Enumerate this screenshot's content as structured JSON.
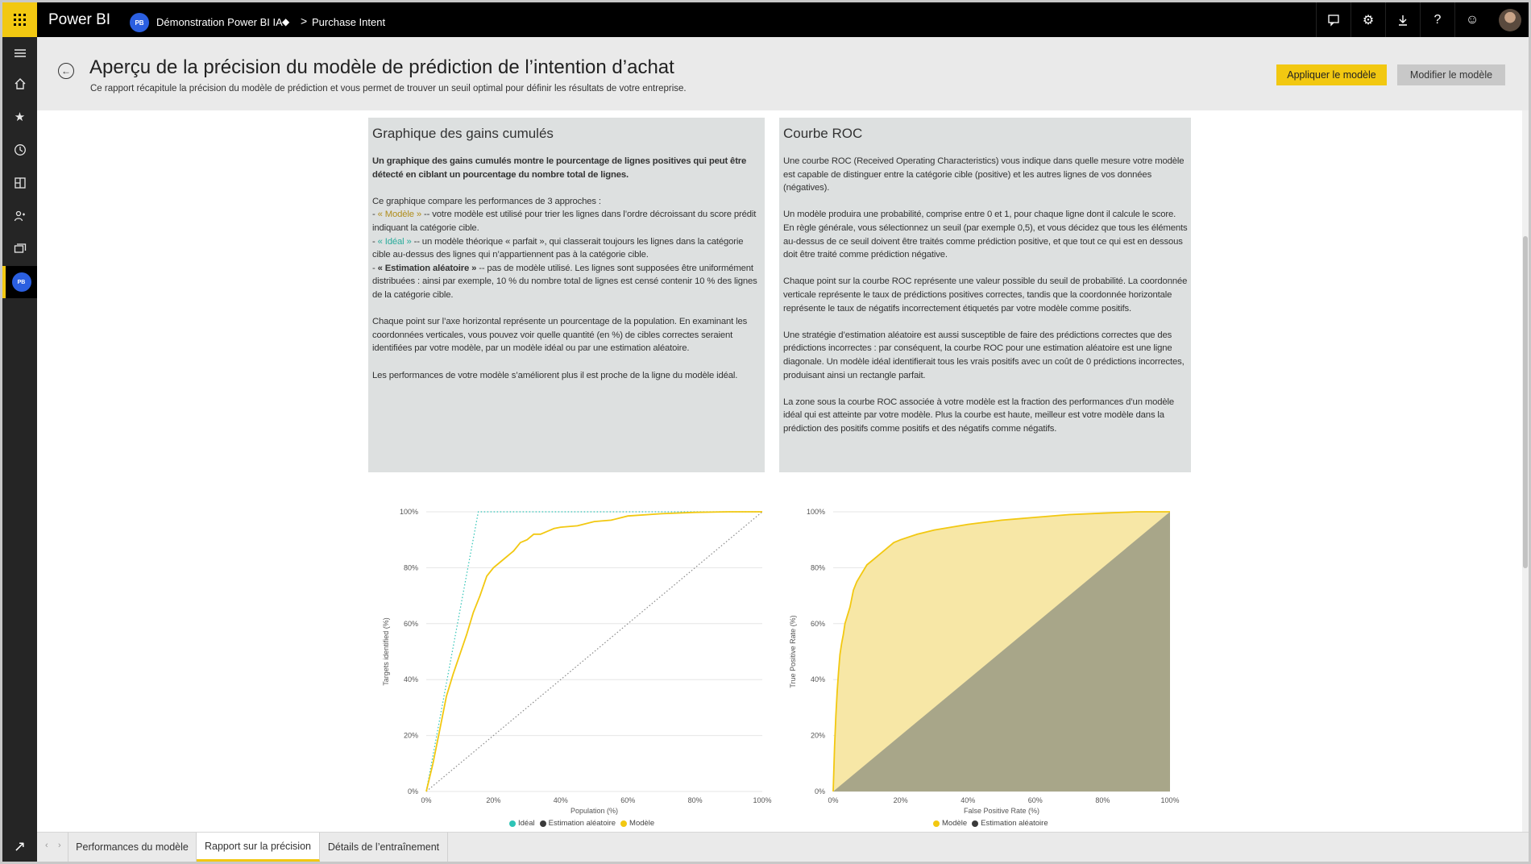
{
  "topbar": {
    "brand": "Power BI",
    "workspace_initials": "PB",
    "workspace_name": "Démonstration Power BI IA",
    "breadcrumb_sep": ">",
    "report_name": "Purchase Intent",
    "icons": [
      "comment-icon",
      "settings-gear-icon",
      "download-icon",
      "help-icon",
      "feedback-smiley-icon"
    ]
  },
  "nav": {
    "items": [
      "menu-icon",
      "home-icon",
      "favorites-star-icon",
      "recent-clock-icon",
      "apps-icon",
      "shared-with-me-icon",
      "workspaces-icon"
    ],
    "active_workspace_initials": "PB"
  },
  "header": {
    "title": "Aperçu de la précision du modèle de prédiction de l’intention d’achat",
    "subtitle": "Ce rapport récapitule la précision du modèle de prédiction et vous permet de trouver un seuil optimal pour définir les résultats de votre entreprise.",
    "apply_label": "Appliquer le modèle",
    "modify_label": "Modifier le modèle"
  },
  "gains_panel": {
    "title": "Graphique des gains cumulés",
    "intro": "Un graphique des gains cumulés montre le pourcentage de lignes positives qui peut être détecté en ciblant un pourcentage du nombre total de lignes.",
    "compare": "Ce graphique compare les performances de 3 approches :",
    "model_prefix": "- ",
    "model_kw": "« Modèle »",
    "model_text": " -- votre modèle est utilisé pour trier les lignes dans l’ordre décroissant du score prédit indiquant la catégorie cible.",
    "ideal_prefix": "- ",
    "ideal_kw": "« Idéal »",
    "ideal_text": "  -- un modèle théorique « parfait », qui classerait toujours les lignes dans la catégorie cible au-dessus des lignes qui n’appartiennent pas à la catégorie cible.",
    "random_prefix": "- ",
    "random_kw": "« Estimation aléatoire »",
    "random_text": " -- pas de modèle utilisé. Les lignes sont supposées être uniformément distribuées : ainsi par exemple, 10 % du nombre total de lignes est censé contenir 10 % des lignes de la catégorie cible.",
    "para_axis": "Chaque point sur l’axe horizontal représente un pourcentage de la population. En examinant les coordonnées verticales, vous pouvez voir quelle quantité (en %) de cibles correctes seraient identifiées par votre modèle, par un modèle idéal ou par une estimation aléatoire.",
    "para_conclusion": "Les performances de votre modèle s’améliorent plus il est proche de la ligne du modèle idéal."
  },
  "roc_panel": {
    "title": "Courbe ROC",
    "p1": "Une courbe ROC (Received Operating Characteristics) vous indique dans quelle mesure votre modèle est capable de distinguer entre la catégorie cible (positive) et les autres lignes de vos données (négatives).",
    "p2": "Un modèle produira une probabilité, comprise entre 0 et 1, pour chaque ligne dont il calcule le score. En règle générale, vous sélectionnez un seuil (par exemple 0,5), et vous décidez que tous les éléments au-dessus de ce seuil doivent être traités comme prédiction positive, et que tout ce qui est en dessous doit être traité comme prédiction négative.",
    "p3": "Chaque point sur la courbe ROC représente une valeur possible du seuil de probabilité. La coordonnée verticale représente le taux de prédictions positives correctes, tandis que la coordonnée horizontale représente le taux de négatifs incorrectement étiquetés par votre modèle comme positifs.",
    "p4": "Une stratégie d’estimation aléatoire est aussi susceptible de faire des prédictions correctes que des prédictions incorrectes : par conséquent, la courbe ROC pour une estimation aléatoire est une ligne diagonale. Un modèle idéal identifierait tous les vrais positifs avec un coût de 0 prédictions incorrectes, produisant ainsi un rectangle parfait.",
    "p5": "La zone sous la courbe ROC associée à votre modèle est la fraction des performances d’un modèle idéal qui est atteinte par votre modèle. Plus la courbe est haute, meilleur est votre modèle dans la prédiction des positifs comme positifs et des négatifs comme négatifs."
  },
  "colors": {
    "accent": "#f2c811",
    "model": "#f2c811",
    "ideal": "#2ec4b6",
    "random": "#3a3a3a",
    "roc_fill": "#f7e7a6",
    "roc_random_fill": "#a8a689"
  },
  "chart_data": [
    {
      "type": "line",
      "xlabel": "Population (%)",
      "ylabel": "Targets identified (%)",
      "xlim": [
        0,
        100
      ],
      "ylim": [
        0,
        100
      ],
      "x_ticks": [
        "0%",
        "20%",
        "40%",
        "60%",
        "80%",
        "100%"
      ],
      "y_ticks": [
        "0%",
        "20%",
        "40%",
        "60%",
        "80%",
        "100%"
      ],
      "legend_position": "bottom",
      "series": [
        {
          "name": "Idéal",
          "style": "dotted",
          "x": [
            0,
            15.5,
            100
          ],
          "y": [
            0,
            100,
            100
          ]
        },
        {
          "name": "Estimation aléatoire",
          "style": "dotted",
          "x": [
            0,
            100
          ],
          "y": [
            0,
            100
          ]
        },
        {
          "name": "Modèle",
          "style": "solid",
          "x": [
            0,
            2,
            4,
            6,
            8,
            10,
            12,
            14,
            16,
            18,
            20,
            22,
            24,
            26,
            28,
            30,
            32,
            34,
            36,
            38,
            40,
            45,
            50,
            55,
            60,
            70,
            80,
            90,
            100
          ],
          "y": [
            0,
            10,
            22,
            34,
            42,
            49,
            56,
            64,
            70,
            77,
            80,
            82,
            84,
            86,
            89,
            90,
            92,
            92,
            93,
            94,
            94.5,
            95,
            96.5,
            97,
            98.5,
            99.3,
            99.8,
            100,
            100
          ]
        }
      ]
    },
    {
      "type": "area",
      "xlabel": "False Positive Rate (%)",
      "ylabel": "True Positive Rate (%)",
      "xlim": [
        0,
        100
      ],
      "ylim": [
        0,
        100
      ],
      "x_ticks": [
        "0%",
        "20%",
        "40%",
        "60%",
        "80%",
        "100%"
      ],
      "y_ticks": [
        "0%",
        "20%",
        "40%",
        "60%",
        "80%",
        "100%"
      ],
      "legend_position": "bottom",
      "series": [
        {
          "name": "Modèle",
          "x": [
            0,
            0.4,
            0.8,
            1.2,
            1.6,
            2,
            2.5,
            3,
            3.5,
            4,
            5,
            6,
            7,
            8,
            9,
            10,
            12,
            14,
            16,
            18,
            20,
            25,
            30,
            35,
            40,
            50,
            60,
            70,
            80,
            90,
            100
          ],
          "y": [
            0,
            16,
            27,
            36,
            43,
            49,
            53,
            56,
            60,
            62,
            66,
            72,
            75,
            77,
            79,
            81,
            83,
            85,
            87,
            89,
            90,
            92,
            93.5,
            94.5,
            95.5,
            97,
            98,
            99,
            99.5,
            100,
            100
          ]
        },
        {
          "name": "Estimation aléatoire",
          "x": [
            0,
            100
          ],
          "y": [
            0,
            100
          ]
        }
      ]
    }
  ],
  "legends": {
    "gains": [
      "Idéal",
      "Estimation aléatoire",
      "Modèle"
    ],
    "roc": [
      "Modèle",
      "Estimation aléatoire"
    ]
  },
  "tabs": {
    "prev": "‹",
    "next": "›",
    "items": [
      "Performances du modèle",
      "Rapport sur la précision",
      "Détails de l’entraînement"
    ],
    "active_index": 1
  }
}
